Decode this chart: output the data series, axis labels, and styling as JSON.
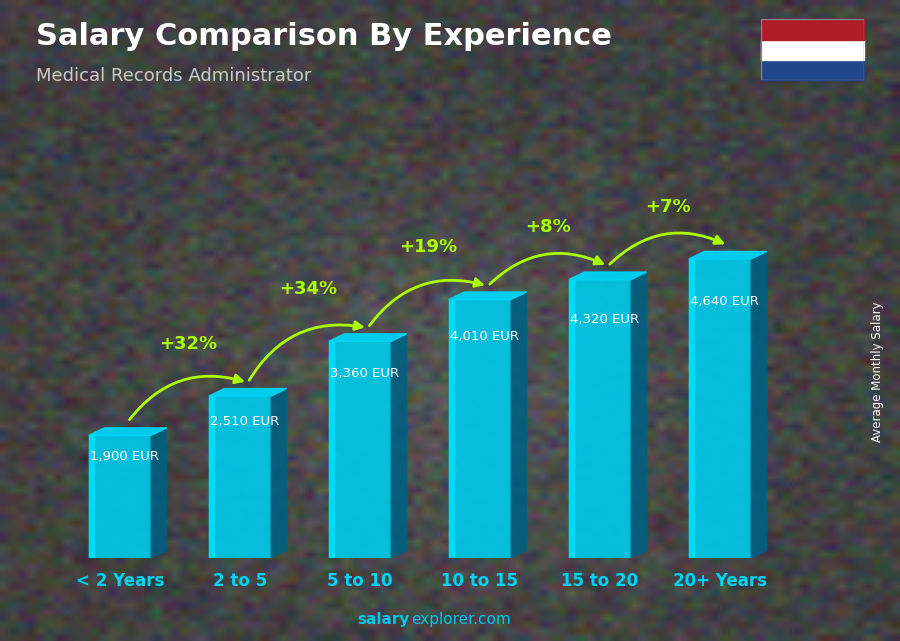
{
  "title": "Salary Comparison By Experience",
  "subtitle": "Medical Records Administrator",
  "categories": [
    "< 2 Years",
    "2 to 5",
    "5 to 10",
    "10 to 15",
    "15 to 20",
    "20+ Years"
  ],
  "values": [
    1900,
    2510,
    3360,
    4010,
    4320,
    4640
  ],
  "labels": [
    "1,900 EUR",
    "2,510 EUR",
    "3,360 EUR",
    "4,010 EUR",
    "4,320 EUR",
    "4,640 EUR"
  ],
  "pct_changes": [
    "+32%",
    "+34%",
    "+19%",
    "+8%",
    "+7%"
  ],
  "bar_front_color": "#00c8e8",
  "bar_left_color": "#00e5ff",
  "bar_side_color": "#006080",
  "bar_top_color": "#00d4f5",
  "bg_color": "#404040",
  "title_color": "#ffffff",
  "subtitle_color": "#cccccc",
  "label_color": "#ffffff",
  "pct_color": "#aaff00",
  "xlabel_color": "#00d4f5",
  "watermark_bold": "salary",
  "watermark_normal": "explorer.com",
  "ylabel_text": "Average Monthly Salary",
  "flag_colors": [
    "#AE1C28",
    "#FFFFFF",
    "#21468B"
  ],
  "arrow_color": "#aaff00"
}
